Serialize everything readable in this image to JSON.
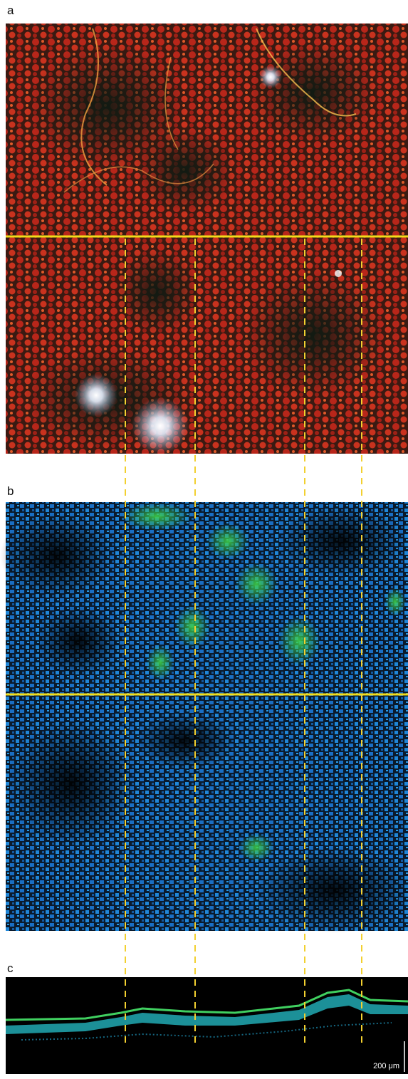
{
  "panels": [
    {
      "label": "a"
    },
    {
      "label": "b"
    },
    {
      "label": "c"
    }
  ],
  "scale_bar": {
    "label": "200 μm"
  }
}
